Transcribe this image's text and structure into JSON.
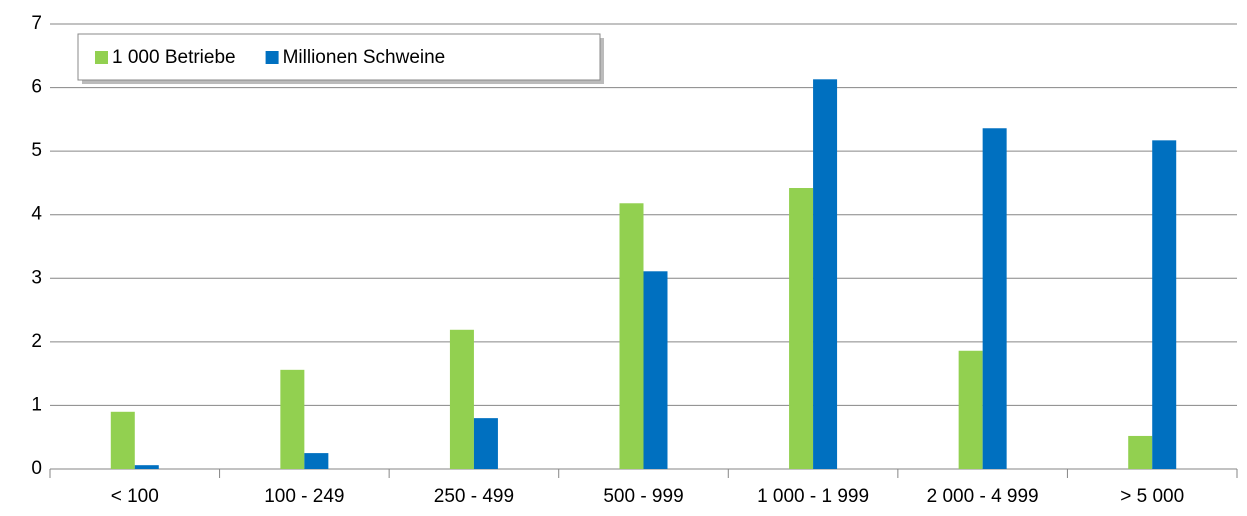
{
  "chart_data": {
    "type": "bar",
    "categories": [
      "< 100",
      "100 - 249",
      "250 - 499",
      "500 - 999",
      "1 000 - 1 999",
      "2 000 - 4 999",
      "> 5 000"
    ],
    "series": [
      {
        "name": "1 000 Betriebe",
        "color": "#92d050",
        "values": [
          0.9,
          1.56,
          2.19,
          4.18,
          4.42,
          1.86,
          0.52
        ]
      },
      {
        "name": "Millionen Schweine",
        "color": "#0070c0",
        "values": [
          0.06,
          0.25,
          0.8,
          3.11,
          6.13,
          5.36,
          5.17
        ]
      }
    ],
    "ylim": [
      0,
      7
    ],
    "yticks": [
      0,
      1,
      2,
      3,
      4,
      5,
      6,
      7
    ],
    "grid": true,
    "legend": "top-left"
  }
}
